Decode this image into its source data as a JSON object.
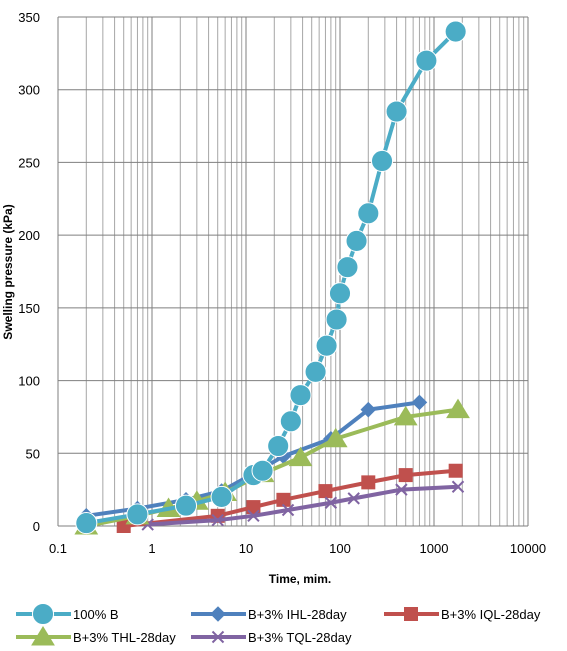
{
  "chart_data": {
    "type": "line",
    "title": "",
    "xlabel": "Time, mim.",
    "ylabel": "Swelling pressure (kPa)",
    "x_scale": "log",
    "xlim": [
      0.1,
      10000
    ],
    "ylim": [
      0,
      350
    ],
    "x_ticks": [
      "0.1",
      "1",
      "10",
      "100",
      "1000",
      "10000"
    ],
    "y_ticks": [
      "0",
      "50",
      "100",
      "150",
      "200",
      "250",
      "300",
      "350"
    ],
    "grid": "major and minor vertical, major horizontal",
    "legend_position": "bottom",
    "series": [
      {
        "name": "100% B",
        "color": "#4bacc6",
        "marker": "circle",
        "x": [
          0.2,
          0.7,
          2.3,
          5.5,
          12,
          15,
          22,
          30,
          38,
          55,
          72,
          92,
          100,
          120,
          150,
          200,
          280,
          400,
          830,
          1700
        ],
        "y": [
          2,
          8,
          14,
          20,
          35,
          38,
          55,
          72,
          90,
          106,
          124,
          142,
          160,
          178,
          196,
          215,
          251,
          285,
          320,
          340
        ]
      },
      {
        "name": "B+3% IHL-28day",
        "color": "#4f81bd",
        "marker": "diamond",
        "x": [
          0.2,
          0.7,
          2.3,
          5.5,
          12,
          25,
          80,
          200,
          700
        ],
        "y": [
          7,
          12,
          18,
          24,
          36,
          48,
          60,
          80,
          85
        ]
      },
      {
        "name": "B+3% IQL-28day",
        "color": "#c0504d",
        "marker": "square",
        "x": [
          0.5,
          5,
          12,
          25,
          70,
          200,
          500,
          1700
        ],
        "y": [
          0,
          7,
          13,
          18,
          24,
          30,
          35,
          38
        ]
      },
      {
        "name": "B+3% THL-28day",
        "color": "#9bbb59",
        "marker": "triangle",
        "x": [
          0.2,
          0.7,
          1.5,
          3,
          6,
          15,
          38,
          90,
          500,
          1800
        ],
        "y": [
          0,
          7,
          12,
          17,
          23,
          36,
          47,
          60,
          75,
          80
        ]
      },
      {
        "name": "B+3% TQL-28day",
        "color": "#8064a2",
        "marker": "x",
        "x": [
          0.9,
          5,
          12,
          28,
          80,
          140,
          450,
          1800
        ],
        "y": [
          1,
          4,
          7,
          11,
          16,
          19,
          25,
          27
        ]
      }
    ]
  }
}
